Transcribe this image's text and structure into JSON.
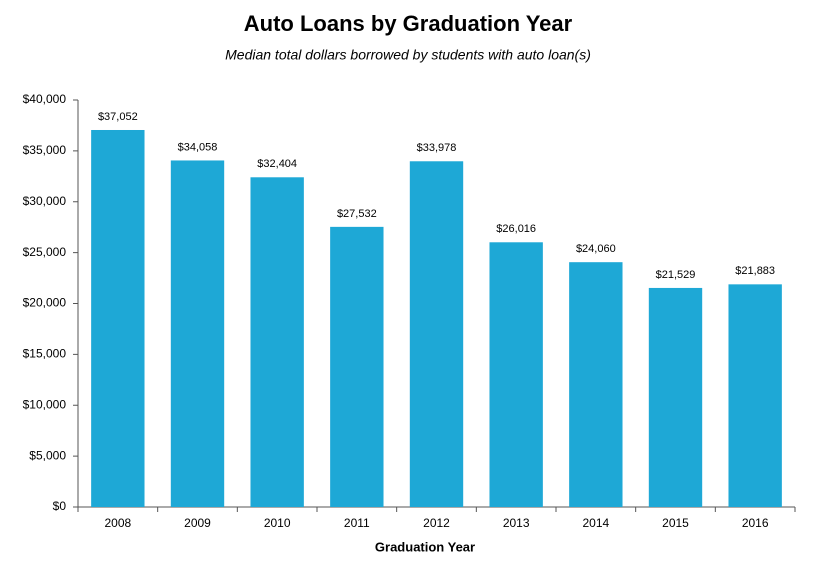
{
  "chart_data": {
    "type": "bar",
    "title": "Auto Loans by Graduation Year",
    "subtitle": "Median total dollars borrowed by students with auto loan(s)",
    "x_label": "Graduation Year",
    "categories": [
      "2008",
      "2009",
      "2010",
      "2011",
      "2012",
      "2013",
      "2014",
      "2015",
      "2016"
    ],
    "values": [
      37052,
      34058,
      32404,
      27532,
      33978,
      26016,
      24060,
      21529,
      21883
    ],
    "value_labels": [
      "$37,052",
      "$34,058",
      "$32,404",
      "$27,532",
      "$33,978",
      "$26,016",
      "$24,060",
      "$21,529",
      "$21,883"
    ],
    "color": "#1ea8d6",
    "ylim": [
      0,
      40000
    ],
    "yticks": [
      {
        "value": 0,
        "label": "$0"
      },
      {
        "value": 5000,
        "label": "$5,000"
      },
      {
        "value": 10000,
        "label": "$10,000"
      },
      {
        "value": 15000,
        "label": "$15,000"
      },
      {
        "value": 20000,
        "label": "$20,000"
      },
      {
        "value": 25000,
        "label": "$25,000"
      },
      {
        "value": 30000,
        "label": "$30,000"
      },
      {
        "value": 35000,
        "label": "$35,000"
      },
      {
        "value": 40000,
        "label": "$40,000"
      }
    ],
    "grid": false
  }
}
